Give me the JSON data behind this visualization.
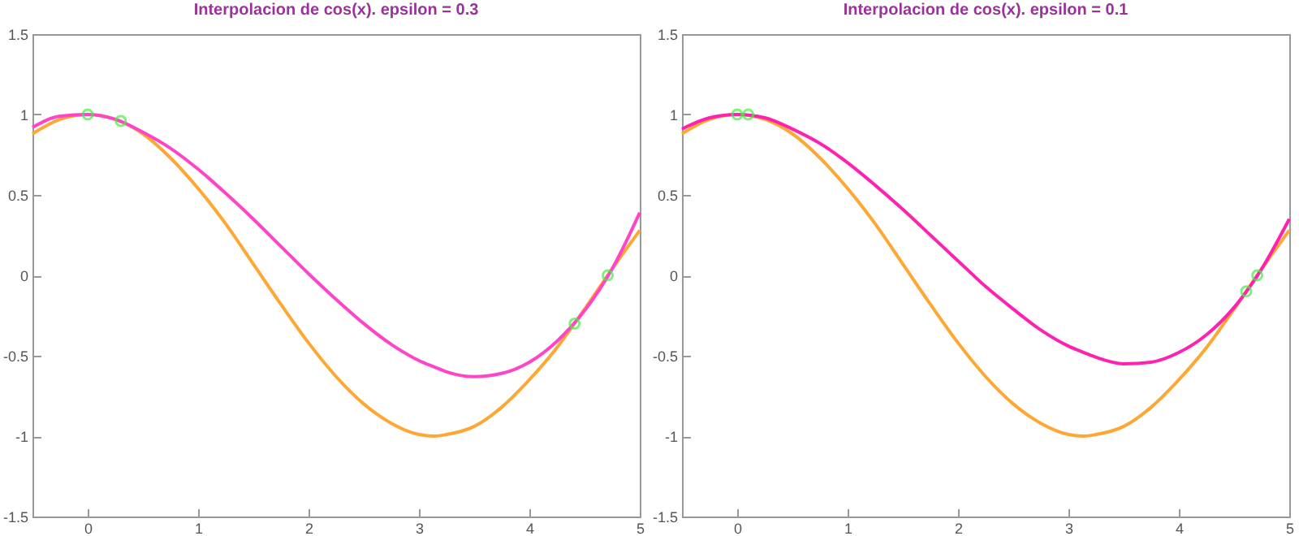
{
  "chart_data": [
    {
      "type": "line",
      "title": "Interpolacion de cos(x). epsilon = 0.3",
      "x": [
        -0.5,
        -0.25,
        0,
        0.25,
        0.5,
        0.75,
        1,
        1.25,
        1.5,
        1.75,
        2,
        2.25,
        2.5,
        2.75,
        3,
        3.14,
        3.25,
        3.5,
        3.75,
        4,
        4.25,
        4.5,
        4.75,
        5
      ],
      "series": [
        {
          "color": "#ffa733",
          "values": [
            0.88,
            0.97,
            1,
            0.97,
            0.88,
            0.73,
            0.54,
            0.32,
            0.07,
            -0.18,
            -0.42,
            -0.63,
            -0.8,
            -0.92,
            -0.99,
            -1,
            -0.99,
            -0.94,
            -0.82,
            -0.65,
            -0.45,
            -0.21,
            0.04,
            0.28
          ]
        },
        {
          "color": "#ff44c8",
          "values": [
            0.92,
            0.99,
            1,
            0.97,
            0.89,
            0.79,
            0.66,
            0.51,
            0.35,
            0.18,
            0.01,
            -0.15,
            -0.3,
            -0.43,
            -0.53,
            -0.57,
            -0.6,
            -0.63,
            -0.61,
            -0.54,
            -0.41,
            -0.22,
            0.04,
            0.39
          ]
        },
        {
          "type": "scatter",
          "marker": "circle",
          "color": "#44ee44",
          "x": [
            0,
            0.3,
            4.41,
            4.71
          ],
          "values": [
            1,
            0.96,
            -0.3,
            0
          ]
        }
      ],
      "xlim": [
        -0.5,
        5
      ],
      "ylim": [
        -1.5,
        1.5
      ],
      "xticks": [
        0,
        1,
        2,
        3,
        4,
        5
      ],
      "yticks": [
        -1.5,
        -1,
        -0.5,
        0,
        0.5,
        1,
        1.5
      ]
    },
    {
      "type": "line",
      "title": "Interpolacion de cos(x). epsilon = 0.1",
      "x": [
        -0.5,
        -0.25,
        0,
        0.25,
        0.5,
        0.75,
        1,
        1.25,
        1.5,
        1.75,
        2,
        2.25,
        2.5,
        2.75,
        3,
        3.14,
        3.25,
        3.5,
        3.75,
        4,
        4.25,
        4.5,
        4.75,
        5
      ],
      "series": [
        {
          "color": "#ffa733",
          "values": [
            0.88,
            0.97,
            1,
            0.97,
            0.88,
            0.73,
            0.54,
            0.32,
            0.07,
            -0.18,
            -0.42,
            -0.63,
            -0.8,
            -0.92,
            -0.99,
            -1,
            -0.99,
            -0.94,
            -0.82,
            -0.65,
            -0.45,
            -0.21,
            0.04,
            0.28
          ]
        },
        {
          "color": "#ff22b0",
          "values": [
            0.91,
            0.98,
            1,
            0.98,
            0.91,
            0.82,
            0.7,
            0.56,
            0.41,
            0.25,
            0.09,
            -0.07,
            -0.21,
            -0.34,
            -0.44,
            -0.48,
            -0.51,
            -0.55,
            -0.54,
            -0.48,
            -0.37,
            -0.2,
            0.04,
            0.35
          ]
        },
        {
          "type": "scatter",
          "marker": "circle",
          "color": "#44ee44",
          "x": [
            0,
            0.1,
            4.61,
            4.71
          ],
          "values": [
            1,
            1,
            -0.1,
            0
          ]
        }
      ],
      "xlim": [
        -0.5,
        5
      ],
      "ylim": [
        -1.5,
        1.5
      ],
      "xticks": [
        0,
        1,
        2,
        3,
        4,
        5
      ],
      "yticks": [
        -1.5,
        -1,
        -0.5,
        0,
        0.5,
        1,
        1.5
      ]
    }
  ]
}
